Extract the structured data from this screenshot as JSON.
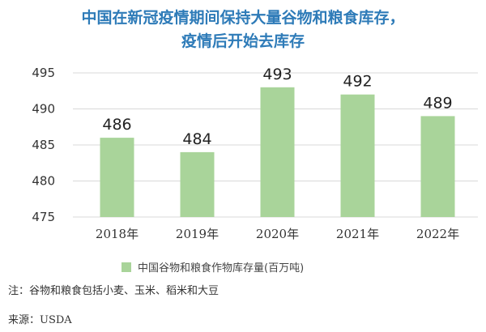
{
  "title_lines": [
    "中国在新冠疫情期间保持大量谷物和粮食库存，",
    "疫情后开始去库存"
  ],
  "note": "注：谷物和粮食包括小麦、玉米、稻米和大豆",
  "source": "来源：USDA",
  "colors": {
    "bar": "#a9d49a",
    "title": "#2e7bb8",
    "grid": "#d8d8d8",
    "text": "#333333"
  },
  "chart_data": {
    "type": "bar",
    "categories": [
      "2018年",
      "2019年",
      "2020年",
      "2021年",
      "2022年"
    ],
    "series": [
      {
        "name": "中国谷物和粮食作物库存量(百万吨)",
        "values": [
          486,
          484,
          493,
          492,
          489
        ]
      }
    ],
    "ylim": [
      475,
      495
    ],
    "yticks": [
      475,
      480,
      485,
      490,
      495
    ],
    "data_labels": [
      "486",
      "484",
      "493",
      "492",
      "489"
    ],
    "grid": true,
    "legend": "bottom-center"
  }
}
